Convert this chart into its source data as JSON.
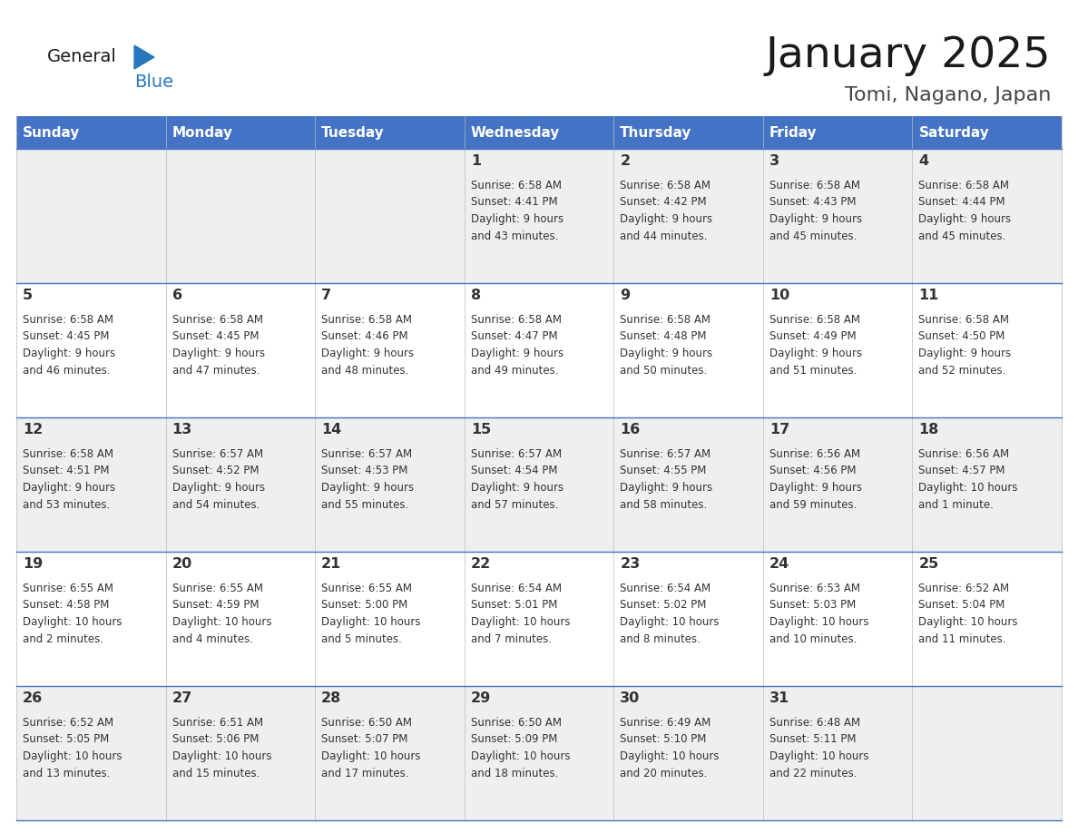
{
  "title": "January 2025",
  "subtitle": "Tomi, Nagano, Japan",
  "header_bg": "#4472C4",
  "header_text_color": "#FFFFFF",
  "day_names": [
    "Sunday",
    "Monday",
    "Tuesday",
    "Wednesday",
    "Thursday",
    "Friday",
    "Saturday"
  ],
  "odd_row_bg": "#FFFFFF",
  "even_row_bg": "#EFEFEF",
  "cell_text_color": "#333333",
  "grid_color": "#4472C4",
  "logo_color_general": "#1a1a1a",
  "logo_color_blue": "#2878BE",
  "calendar": [
    [
      null,
      null,
      null,
      {
        "day": 1,
        "sunrise": "6:58 AM",
        "sunset": "4:41 PM",
        "daylight": "9 hours and 43 minutes."
      },
      {
        "day": 2,
        "sunrise": "6:58 AM",
        "sunset": "4:42 PM",
        "daylight": "9 hours and 44 minutes."
      },
      {
        "day": 3,
        "sunrise": "6:58 AM",
        "sunset": "4:43 PM",
        "daylight": "9 hours and 45 minutes."
      },
      {
        "day": 4,
        "sunrise": "6:58 AM",
        "sunset": "4:44 PM",
        "daylight": "9 hours and 45 minutes."
      }
    ],
    [
      {
        "day": 5,
        "sunrise": "6:58 AM",
        "sunset": "4:45 PM",
        "daylight": "9 hours and 46 minutes."
      },
      {
        "day": 6,
        "sunrise": "6:58 AM",
        "sunset": "4:45 PM",
        "daylight": "9 hours and 47 minutes."
      },
      {
        "day": 7,
        "sunrise": "6:58 AM",
        "sunset": "4:46 PM",
        "daylight": "9 hours and 48 minutes."
      },
      {
        "day": 8,
        "sunrise": "6:58 AM",
        "sunset": "4:47 PM",
        "daylight": "9 hours and 49 minutes."
      },
      {
        "day": 9,
        "sunrise": "6:58 AM",
        "sunset": "4:48 PM",
        "daylight": "9 hours and 50 minutes."
      },
      {
        "day": 10,
        "sunrise": "6:58 AM",
        "sunset": "4:49 PM",
        "daylight": "9 hours and 51 minutes."
      },
      {
        "day": 11,
        "sunrise": "6:58 AM",
        "sunset": "4:50 PM",
        "daylight": "9 hours and 52 minutes."
      }
    ],
    [
      {
        "day": 12,
        "sunrise": "6:58 AM",
        "sunset": "4:51 PM",
        "daylight": "9 hours and 53 minutes."
      },
      {
        "day": 13,
        "sunrise": "6:57 AM",
        "sunset": "4:52 PM",
        "daylight": "9 hours and 54 minutes."
      },
      {
        "day": 14,
        "sunrise": "6:57 AM",
        "sunset": "4:53 PM",
        "daylight": "9 hours and 55 minutes."
      },
      {
        "day": 15,
        "sunrise": "6:57 AM",
        "sunset": "4:54 PM",
        "daylight": "9 hours and 57 minutes."
      },
      {
        "day": 16,
        "sunrise": "6:57 AM",
        "sunset": "4:55 PM",
        "daylight": "9 hours and 58 minutes."
      },
      {
        "day": 17,
        "sunrise": "6:56 AM",
        "sunset": "4:56 PM",
        "daylight": "9 hours and 59 minutes."
      },
      {
        "day": 18,
        "sunrise": "6:56 AM",
        "sunset": "4:57 PM",
        "daylight": "10 hours and 1 minute."
      }
    ],
    [
      {
        "day": 19,
        "sunrise": "6:55 AM",
        "sunset": "4:58 PM",
        "daylight": "10 hours and 2 minutes."
      },
      {
        "day": 20,
        "sunrise": "6:55 AM",
        "sunset": "4:59 PM",
        "daylight": "10 hours and 4 minutes."
      },
      {
        "day": 21,
        "sunrise": "6:55 AM",
        "sunset": "5:00 PM",
        "daylight": "10 hours and 5 minutes."
      },
      {
        "day": 22,
        "sunrise": "6:54 AM",
        "sunset": "5:01 PM",
        "daylight": "10 hours and 7 minutes."
      },
      {
        "day": 23,
        "sunrise": "6:54 AM",
        "sunset": "5:02 PM",
        "daylight": "10 hours and 8 minutes."
      },
      {
        "day": 24,
        "sunrise": "6:53 AM",
        "sunset": "5:03 PM",
        "daylight": "10 hours and 10 minutes."
      },
      {
        "day": 25,
        "sunrise": "6:52 AM",
        "sunset": "5:04 PM",
        "daylight": "10 hours and 11 minutes."
      }
    ],
    [
      {
        "day": 26,
        "sunrise": "6:52 AM",
        "sunset": "5:05 PM",
        "daylight": "10 hours and 13 minutes."
      },
      {
        "day": 27,
        "sunrise": "6:51 AM",
        "sunset": "5:06 PM",
        "daylight": "10 hours and 15 minutes."
      },
      {
        "day": 28,
        "sunrise": "6:50 AM",
        "sunset": "5:07 PM",
        "daylight": "10 hours and 17 minutes."
      },
      {
        "day": 29,
        "sunrise": "6:50 AM",
        "sunset": "5:09 PM",
        "daylight": "10 hours and 18 minutes."
      },
      {
        "day": 30,
        "sunrise": "6:49 AM",
        "sunset": "5:10 PM",
        "daylight": "10 hours and 20 minutes."
      },
      {
        "day": 31,
        "sunrise": "6:48 AM",
        "sunset": "5:11 PM",
        "daylight": "10 hours and 22 minutes."
      },
      null
    ]
  ]
}
